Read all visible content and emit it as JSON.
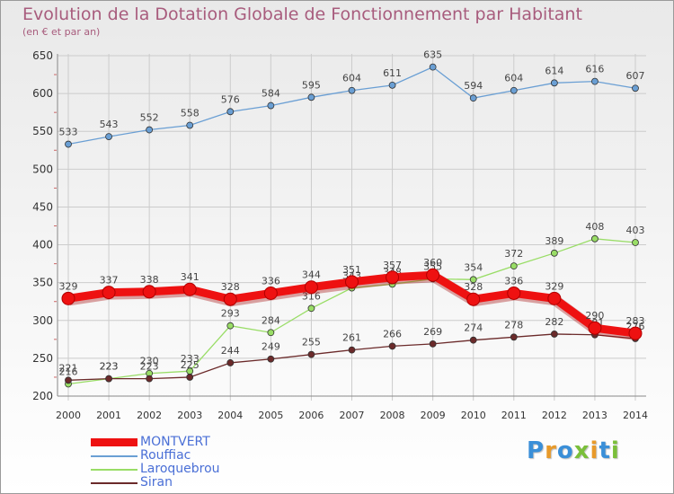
{
  "title": "Evolution de la Dotation Globale de Fonctionnement par Habitant",
  "subtitle": "(en € et par an)",
  "logo_text": "Proxiti",
  "colors": {
    "grid": "#cccccc",
    "axis_text": "#333333",
    "label_text": "#444444",
    "title": "#a85c7d"
  },
  "chart_data": {
    "type": "line",
    "title": "Evolution de la Dotation Globale de Fonctionnement par Habitant",
    "subtitle": "(en € et par an)",
    "x": [
      2000,
      2001,
      2002,
      2003,
      2004,
      2005,
      2006,
      2007,
      2008,
      2009,
      2010,
      2011,
      2012,
      2013,
      2014
    ],
    "ylim": [
      200,
      650
    ],
    "yticks": [
      200,
      250,
      300,
      350,
      400,
      450,
      500,
      550,
      600,
      650
    ],
    "grid": true,
    "legend_position": "bottom-left",
    "series": [
      {
        "name": "MONTVERT",
        "color": "#ee1111",
        "emphasis": true,
        "values": [
          329,
          337,
          338,
          341,
          328,
          336,
          344,
          351,
          357,
          360,
          328,
          336,
          329,
          290,
          283
        ]
      },
      {
        "name": "Rouffiac",
        "color": "#6a9fd4",
        "emphasis": false,
        "values": [
          533,
          543,
          552,
          558,
          576,
          584,
          595,
          604,
          611,
          635,
          594,
          604,
          614,
          616,
          607
        ]
      },
      {
        "name": "Laroquebrou",
        "color": "#99dd66",
        "emphasis": false,
        "values": [
          216,
          223,
          230,
          233,
          293,
          284,
          316,
          343,
          348,
          355,
          354,
          372,
          389,
          408,
          403
        ]
      },
      {
        "name": "Siran",
        "color": "#6b2a2a",
        "emphasis": false,
        "values": [
          221,
          223,
          223,
          225,
          244,
          249,
          255,
          261,
          266,
          269,
          274,
          278,
          282,
          281,
          276
        ]
      }
    ]
  }
}
